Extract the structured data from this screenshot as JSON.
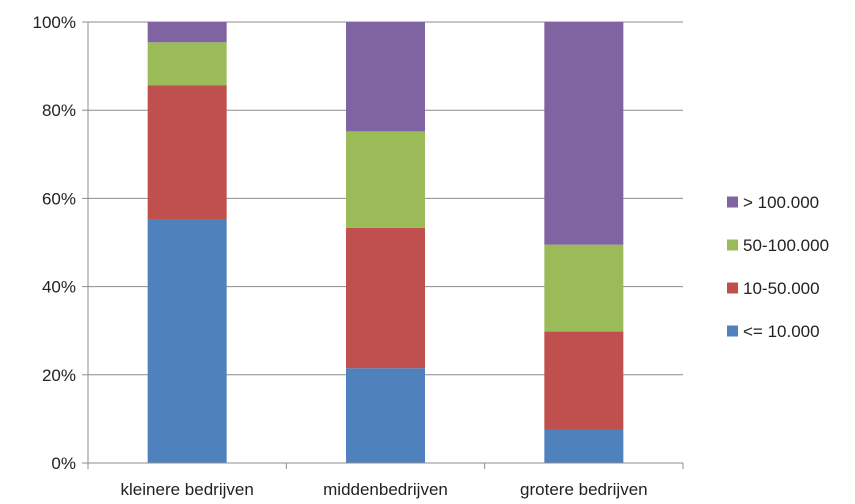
{
  "chart_data": {
    "type": "bar",
    "stacked": true,
    "percent_stacked": true,
    "categories": [
      "kleinere bedrijven",
      "middenbedrijven",
      "grotere bedrijven"
    ],
    "series": [
      {
        "name": "<= 10.000",
        "color": "#4F81BD",
        "values": [
          55.2,
          21.5,
          7.6
        ]
      },
      {
        "name": "10-50.000",
        "color": "#C0504D",
        "values": [
          30.4,
          31.8,
          22.2
        ]
      },
      {
        "name": "50-100.000",
        "color": "#9BBB59",
        "values": [
          9.8,
          21.9,
          19.7
        ]
      },
      {
        "name": "> 100.000",
        "color": "#8064A2",
        "values": [
          4.6,
          24.8,
          50.5
        ]
      }
    ],
    "yticks": [
      "0%",
      "20%",
      "40%",
      "60%",
      "80%",
      "100%"
    ],
    "ylim": [
      0,
      100
    ],
    "grid": true,
    "legend_position": "right",
    "legend_order": [
      "> 100.000",
      "50-100.000",
      "10-50.000",
      "<= 10.000"
    ]
  }
}
